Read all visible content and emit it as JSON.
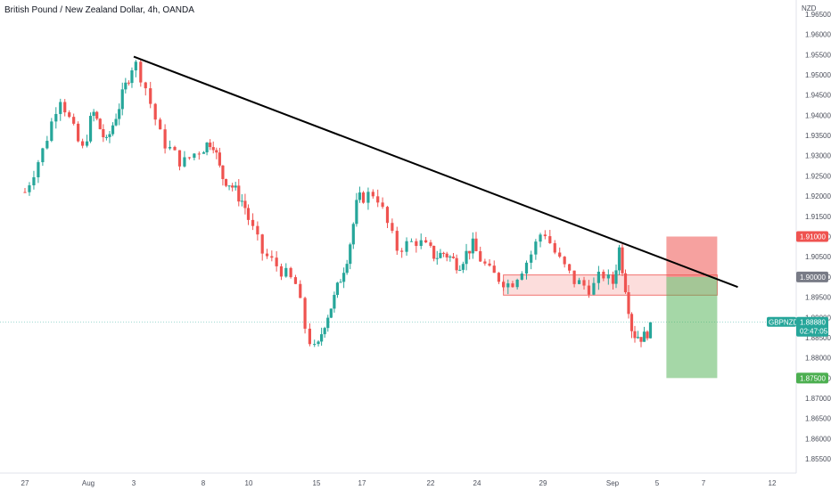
{
  "chart_data": {
    "type": "candlestick",
    "title": "British Pound / New Zealand Dollar, 4h, OANDA",
    "currency": "NZD",
    "ylim": [
      1.8515,
      1.9685
    ],
    "y_ticks": [
      "1.96500",
      "1.96000",
      "1.95500",
      "1.95000",
      "1.94500",
      "1.94000",
      "1.93500",
      "1.93000",
      "1.92500",
      "1.92000",
      "1.91500",
      "1.91000",
      "1.90500",
      "1.90000",
      "1.89500",
      "1.89000",
      "1.88500",
      "1.88000",
      "1.87500",
      "1.87000",
      "1.86500",
      "1.86000",
      "1.85500"
    ],
    "x_ticks": [
      {
        "label": "27",
        "x": 0
      },
      {
        "label": "Aug",
        "x": 1
      },
      {
        "label": "3",
        "x": 2
      },
      {
        "label": "8",
        "x": 3
      },
      {
        "label": "10",
        "x": 4
      },
      {
        "label": "15",
        "x": 5
      },
      {
        "label": "17",
        "x": 6
      },
      {
        "label": "22",
        "x": 7
      },
      {
        "label": "24",
        "x": 8
      },
      {
        "label": "29",
        "x": 9
      },
      {
        "label": "Sep",
        "x": 10
      },
      {
        "label": "5",
        "x": 11
      },
      {
        "label": "7",
        "x": 12
      },
      {
        "label": "12",
        "x": 13
      }
    ],
    "colors": {
      "up": "#26a69a",
      "down": "#ef5350",
      "trendline": "#000000",
      "stop": "#ef5350",
      "target": "#4caf50",
      "current": "#26a69a",
      "level": "#787b86"
    },
    "price_labels": {
      "stop_loss": {
        "price": 1.91,
        "text": "1.91000"
      },
      "entry": {
        "price": 1.9,
        "text": "1.90000"
      },
      "current": {
        "price": 1.8888,
        "symbol": "GBPNZD",
        "price_text": "1.88880",
        "countdown": "02:47:05"
      },
      "take_profit": {
        "price": 1.875,
        "text": "1.87500"
      }
    },
    "trendline": {
      "start": {
        "x": 2,
        "y": 1.9545
      },
      "end": {
        "x": 12.5,
        "y": 1.8975
      }
    },
    "risk_reward": {
      "x_start": 11.2,
      "x_end": 12.2,
      "entry": 1.9,
      "stop": 1.91,
      "target": 1.875
    },
    "resistance_zone": {
      "x_start": 8.4,
      "x_end": 12.2,
      "top": 1.9005,
      "bottom": 1.8955
    },
    "price_path": [
      [
        0,
        1.921
      ],
      [
        0.3,
        1.932
      ],
      [
        0.55,
        1.945
      ],
      [
        0.9,
        1.931
      ],
      [
        1.1,
        1.941
      ],
      [
        1.4,
        1.933
      ],
      [
        1.7,
        1.943
      ],
      [
        2.0,
        1.9535
      ],
      [
        2.15,
        1.948
      ],
      [
        2.4,
        1.934
      ],
      [
        2.7,
        1.928
      ],
      [
        2.9,
        1.931
      ],
      [
        3.2,
        1.934
      ],
      [
        3.4,
        1.925
      ],
      [
        3.6,
        1.923
      ],
      [
        3.9,
        1.918
      ],
      [
        4.2,
        1.906
      ],
      [
        4.4,
        1.903
      ],
      [
        4.7,
        1.898
      ],
      [
        4.85,
        1.886
      ],
      [
        5.0,
        1.881
      ],
      [
        5.15,
        1.888
      ],
      [
        5.4,
        1.895
      ],
      [
        5.7,
        1.906
      ],
      [
        5.9,
        1.919
      ],
      [
        6.2,
        1.921
      ],
      [
        6.5,
        1.907
      ],
      [
        6.8,
        1.909
      ],
      [
        7.1,
        1.905
      ],
      [
        7.3,
        1.906
      ],
      [
        7.6,
        1.903
      ],
      [
        7.9,
        1.908
      ],
      [
        8.2,
        1.901
      ],
      [
        8.5,
        1.898
      ],
      [
        8.8,
        1.905
      ],
      [
        9.0,
        1.912
      ],
      [
        9.2,
        1.905
      ],
      [
        9.45,
        1.899
      ],
      [
        9.7,
        1.897
      ],
      [
        9.85,
        1.901
      ],
      [
        10.0,
        1.898
      ],
      [
        10.15,
        1.907
      ],
      [
        10.3,
        1.897
      ],
      [
        10.45,
        1.886
      ],
      [
        10.7,
        1.885
      ],
      [
        10.9,
        1.8888
      ]
    ]
  }
}
